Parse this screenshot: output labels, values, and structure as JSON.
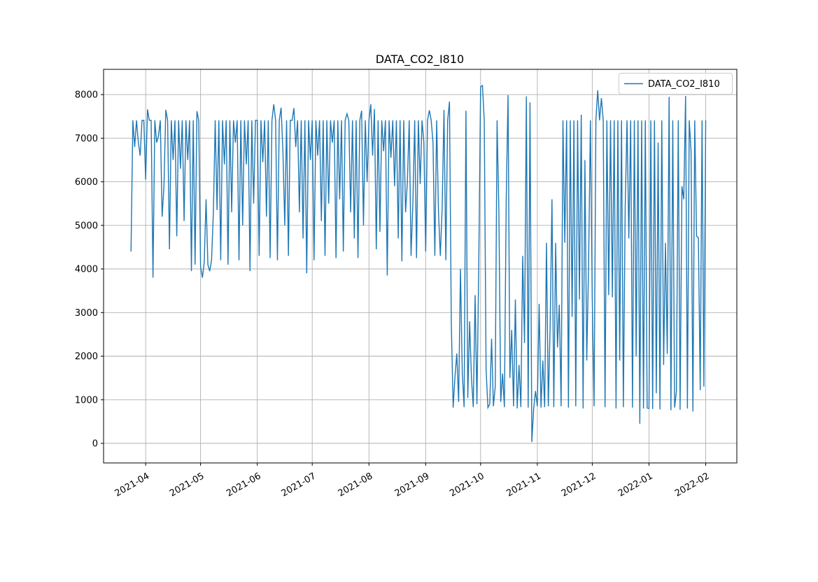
{
  "title": "DATA_CO2_I810",
  "legend": {
    "label": "DATA_CO2_I810"
  },
  "chart_data": {
    "type": "line",
    "title": "DATA_CO2_I810",
    "series_name": "DATA_CO2_I810",
    "line_color": "#1f77b4",
    "grid": true,
    "grid_color": "#b0b0b0",
    "spine_color": "#000000",
    "xlabel": "",
    "ylabel": "",
    "ylim": [
      -450,
      8580
    ],
    "yticks": [
      0,
      1000,
      2000,
      3000,
      4000,
      5000,
      6000,
      7000,
      8000
    ],
    "xlim": [
      "2021-03-09",
      "2022-02-18"
    ],
    "xticks": [
      {
        "date": "2021-04-01",
        "label": "2021-04"
      },
      {
        "date": "2021-05-01",
        "label": "2021-05"
      },
      {
        "date": "2021-06-01",
        "label": "2021-06"
      },
      {
        "date": "2021-07-01",
        "label": "2021-07"
      },
      {
        "date": "2021-08-01",
        "label": "2021-08"
      },
      {
        "date": "2021-09-01",
        "label": "2021-09"
      },
      {
        "date": "2021-10-01",
        "label": "2021-10"
      },
      {
        "date": "2021-11-01",
        "label": "2021-11"
      },
      {
        "date": "2021-12-01",
        "label": "2021-12"
      },
      {
        "date": "2022-01-01",
        "label": "2022-01"
      },
      {
        "date": "2022-02-01",
        "label": "2022-02"
      }
    ],
    "legend_position": "upper-right",
    "baseline": 7410,
    "data_start": "2021-03-24",
    "data_end": "2022-02-01",
    "events": [
      [
        "2021-03-24",
        4400
      ],
      [
        "2021-03-26",
        6800
      ],
      [
        "2021-03-28",
        6900
      ],
      [
        "2021-03-29",
        6600
      ],
      [
        "2021-04-01",
        6050
      ],
      [
        "2021-04-02",
        7660
      ],
      [
        "2021-04-05",
        3800
      ],
      [
        "2021-04-07",
        6900
      ],
      [
        "2021-04-08",
        7050
      ],
      [
        "2021-04-10",
        5200
      ],
      [
        "2021-04-11",
        5900
      ],
      [
        "2021-04-12",
        7650
      ],
      [
        "2021-04-14",
        4450
      ],
      [
        "2021-04-16",
        6500
      ],
      [
        "2021-04-18",
        4750
      ],
      [
        "2021-04-20",
        6300
      ],
      [
        "2021-04-22",
        5100
      ],
      [
        "2021-04-24",
        6500
      ],
      [
        "2021-04-26",
        3950
      ],
      [
        "2021-04-28",
        4100
      ],
      [
        "2021-04-29",
        7620
      ],
      [
        "2021-05-01",
        4050
      ],
      [
        "2021-05-02",
        3800
      ],
      [
        "2021-05-03",
        4150
      ],
      [
        "2021-05-04",
        5600
      ],
      [
        "2021-05-05",
        4100
      ],
      [
        "2021-05-06",
        3950
      ],
      [
        "2021-05-07",
        4200
      ],
      [
        "2021-05-08",
        5300
      ],
      [
        "2021-05-10",
        5350
      ],
      [
        "2021-05-12",
        4200
      ],
      [
        "2021-05-14",
        6400
      ],
      [
        "2021-05-16",
        4100
      ],
      [
        "2021-05-18",
        5300
      ],
      [
        "2021-05-20",
        6900
      ],
      [
        "2021-05-22",
        4200
      ],
      [
        "2021-05-24",
        5000
      ],
      [
        "2021-05-26",
        6400
      ],
      [
        "2021-05-28",
        3950
      ],
      [
        "2021-05-30",
        5500
      ],
      [
        "2021-06-02",
        4300
      ],
      [
        "2021-06-04",
        6450
      ],
      [
        "2021-06-06",
        5200
      ],
      [
        "2021-06-08",
        4250
      ],
      [
        "2021-06-10",
        7780
      ],
      [
        "2021-06-12",
        4200
      ],
      [
        "2021-06-14",
        7700
      ],
      [
        "2021-06-15",
        6700
      ],
      [
        "2021-06-16",
        5000
      ],
      [
        "2021-06-18",
        4300
      ],
      [
        "2021-06-21",
        7690
      ],
      [
        "2021-06-22",
        6800
      ],
      [
        "2021-06-24",
        5300
      ],
      [
        "2021-06-26",
        4700
      ],
      [
        "2021-06-28",
        3900
      ],
      [
        "2021-06-30",
        6500
      ],
      [
        "2021-07-02",
        4200
      ],
      [
        "2021-07-04",
        6600
      ],
      [
        "2021-07-06",
        5100
      ],
      [
        "2021-07-08",
        4300
      ],
      [
        "2021-07-10",
        5500
      ],
      [
        "2021-07-12",
        6900
      ],
      [
        "2021-07-14",
        4250
      ],
      [
        "2021-07-16",
        5600
      ],
      [
        "2021-07-18",
        4400
      ],
      [
        "2021-07-20",
        7560
      ],
      [
        "2021-07-22",
        5300
      ],
      [
        "2021-07-24",
        4700
      ],
      [
        "2021-07-26",
        4250
      ],
      [
        "2021-07-28",
        7630
      ],
      [
        "2021-07-29",
        5000
      ],
      [
        "2021-07-31",
        6000
      ],
      [
        "2021-08-02",
        7780
      ],
      [
        "2021-08-03",
        6600
      ],
      [
        "2021-08-04",
        7670
      ],
      [
        "2021-08-05",
        4450
      ],
      [
        "2021-08-07",
        4850
      ],
      [
        "2021-08-09",
        6700
      ],
      [
        "2021-08-11",
        3850
      ],
      [
        "2021-08-13",
        6550
      ],
      [
        "2021-08-15",
        5900
      ],
      [
        "2021-08-17",
        4700
      ],
      [
        "2021-08-19",
        4175
      ],
      [
        "2021-08-21",
        5300
      ],
      [
        "2021-08-22",
        6000
      ],
      [
        "2021-08-24",
        4300
      ],
      [
        "2021-08-25",
        5500
      ],
      [
        "2021-08-27",
        4250
      ],
      [
        "2021-08-29",
        5950
      ],
      [
        "2021-08-31",
        6900
      ],
      [
        "2021-09-01",
        4400
      ],
      [
        "2021-09-03",
        7640
      ],
      [
        "2021-09-05",
        6900
      ],
      [
        "2021-09-06",
        4300
      ],
      [
        "2021-09-08",
        5300
      ],
      [
        "2021-09-09",
        4300
      ],
      [
        "2021-09-10",
        5400
      ],
      [
        "2021-09-11",
        7650
      ],
      [
        "2021-09-12",
        4200
      ],
      [
        "2021-09-14",
        7840
      ],
      [
        "2021-09-15",
        2750
      ],
      [
        "2021-09-16",
        820
      ],
      [
        "2021-09-17",
        1520
      ],
      [
        "2021-09-18",
        2060
      ],
      [
        "2021-09-19",
        950
      ],
      [
        "2021-09-20",
        4000
      ],
      [
        "2021-09-21",
        1600
      ],
      [
        "2021-09-22",
        830
      ],
      [
        "2021-09-23",
        7630
      ],
      [
        "2021-09-24",
        1040
      ],
      [
        "2021-09-25",
        2800
      ],
      [
        "2021-09-26",
        1500
      ],
      [
        "2021-09-27",
        830
      ],
      [
        "2021-09-28",
        3400
      ],
      [
        "2021-09-29",
        900
      ],
      [
        "2021-09-30",
        4100
      ],
      [
        "2021-10-01",
        8180
      ],
      [
        "2021-10-02",
        8210
      ],
      [
        "2021-10-04",
        1700
      ],
      [
        "2021-10-05",
        820
      ],
      [
        "2021-10-06",
        900
      ],
      [
        "2021-10-07",
        2400
      ],
      [
        "2021-10-08",
        850
      ],
      [
        "2021-10-09",
        1300
      ],
      [
        "2021-10-11",
        5300
      ],
      [
        "2021-10-12",
        950
      ],
      [
        "2021-10-13",
        1600
      ],
      [
        "2021-10-14",
        830
      ],
      [
        "2021-10-15",
        5600
      ],
      [
        "2021-10-16",
        7990
      ],
      [
        "2021-10-17",
        1500
      ],
      [
        "2021-10-18",
        2600
      ],
      [
        "2021-10-19",
        850
      ],
      [
        "2021-10-20",
        3300
      ],
      [
        "2021-10-21",
        800
      ],
      [
        "2021-10-22",
        1800
      ],
      [
        "2021-10-23",
        830
      ],
      [
        "2021-10-24",
        4300
      ],
      [
        "2021-10-25",
        2300
      ],
      [
        "2021-10-26",
        7960
      ],
      [
        "2021-10-27",
        820
      ],
      [
        "2021-10-28",
        7820
      ],
      [
        "2021-10-29",
        30
      ],
      [
        "2021-10-30",
        800
      ],
      [
        "2021-10-31",
        1200
      ],
      [
        "2021-11-01",
        850
      ],
      [
        "2021-11-02",
        3200
      ],
      [
        "2021-11-03",
        820
      ],
      [
        "2021-11-04",
        1900
      ],
      [
        "2021-11-05",
        830
      ],
      [
        "2021-11-06",
        4600
      ],
      [
        "2021-11-07",
        850
      ],
      [
        "2021-11-08",
        2700
      ],
      [
        "2021-11-09",
        5600
      ],
      [
        "2021-11-10",
        830
      ],
      [
        "2021-11-11",
        4600
      ],
      [
        "2021-11-12",
        2200
      ],
      [
        "2021-11-13",
        3180
      ],
      [
        "2021-11-14",
        850
      ],
      [
        "2021-11-16",
        4600
      ],
      [
        "2021-11-18",
        820
      ],
      [
        "2021-11-20",
        2900
      ],
      [
        "2021-11-22",
        850
      ],
      [
        "2021-11-24",
        3300
      ],
      [
        "2021-11-25",
        7540
      ],
      [
        "2021-11-26",
        800
      ],
      [
        "2021-11-27",
        6500
      ],
      [
        "2021-11-28",
        1900
      ],
      [
        "2021-11-29",
        4100
      ],
      [
        "2021-12-01",
        3350
      ],
      [
        "2021-12-02",
        850
      ],
      [
        "2021-12-04",
        8100
      ],
      [
        "2021-12-06",
        7920
      ],
      [
        "2021-12-08",
        830
      ],
      [
        "2021-12-10",
        3400
      ],
      [
        "2021-12-12",
        3350
      ],
      [
        "2021-12-14",
        800
      ],
      [
        "2021-12-16",
        1900
      ],
      [
        "2021-12-18",
        830
      ],
      [
        "2021-12-19",
        5400
      ],
      [
        "2021-12-21",
        4700
      ],
      [
        "2021-12-23",
        820
      ],
      [
        "2021-12-25",
        2000
      ],
      [
        "2021-12-27",
        450
      ],
      [
        "2021-12-29",
        800
      ],
      [
        "2021-12-31",
        810
      ],
      [
        "2022-01-01",
        800
      ],
      [
        "2022-01-03",
        790
      ],
      [
        "2022-01-05",
        1150
      ],
      [
        "2022-01-06",
        6900
      ],
      [
        "2022-01-07",
        780
      ],
      [
        "2022-01-09",
        1800
      ],
      [
        "2022-01-10",
        4600
      ],
      [
        "2022-01-11",
        2050
      ],
      [
        "2022-01-12",
        7950
      ],
      [
        "2022-01-13",
        760
      ],
      [
        "2022-01-15",
        820
      ],
      [
        "2022-01-16",
        1200
      ],
      [
        "2022-01-18",
        770
      ],
      [
        "2022-01-19",
        5900
      ],
      [
        "2022-01-20",
        5600
      ],
      [
        "2022-01-21",
        7970
      ],
      [
        "2022-01-22",
        800
      ],
      [
        "2022-01-24",
        6700
      ],
      [
        "2022-01-25",
        730
      ],
      [
        "2022-01-27",
        4750
      ],
      [
        "2022-01-28",
        4720
      ],
      [
        "2022-01-29",
        1220
      ],
      [
        "2022-01-31",
        1300
      ]
    ]
  }
}
